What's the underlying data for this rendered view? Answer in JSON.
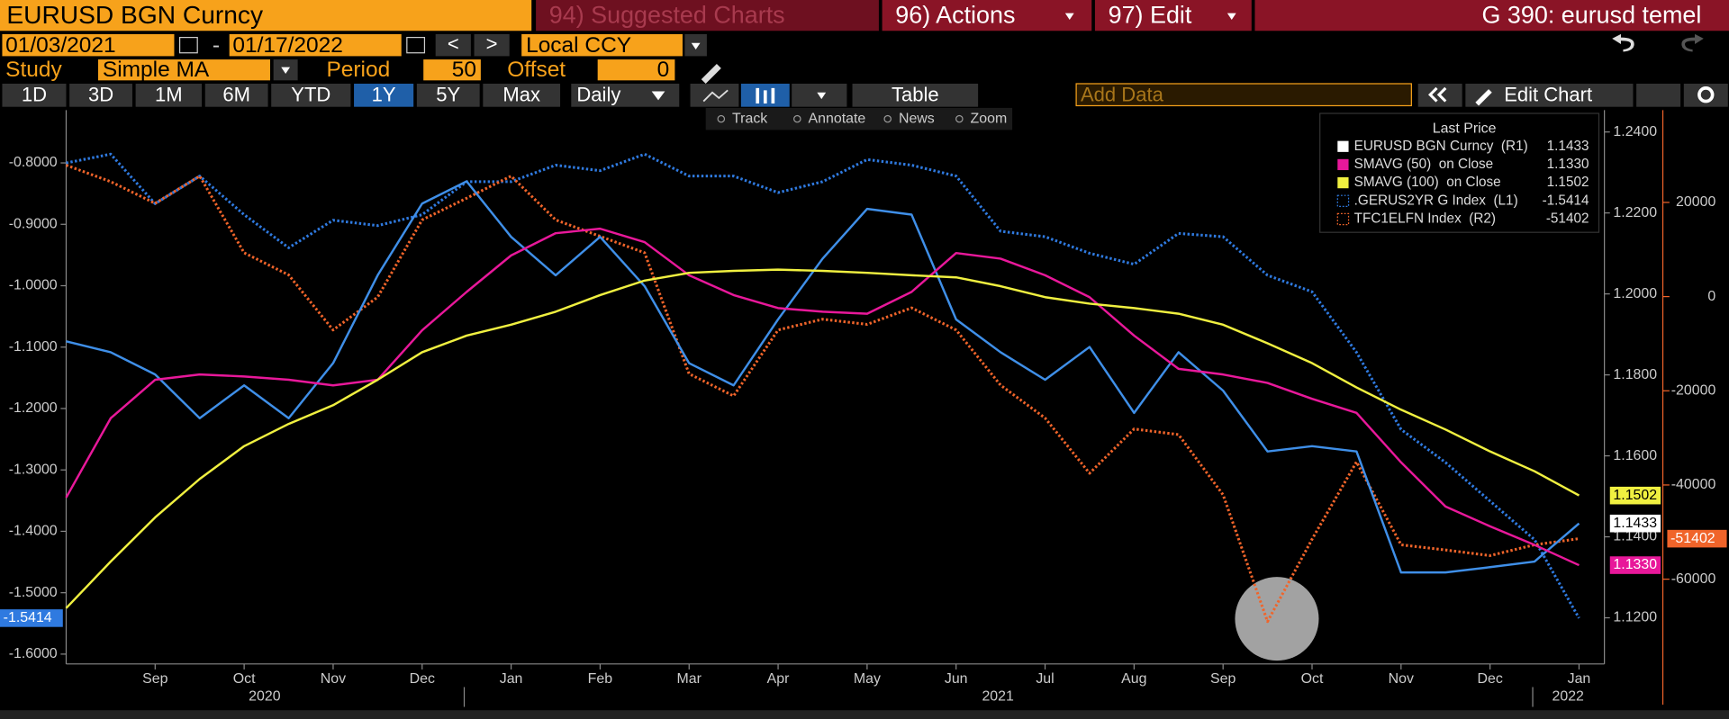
{
  "ui": {
    "header": [
      "EURUSD BGN Curncy",
      "94) Suggested Charts",
      "96) Actions",
      "97) Edit",
      "G 390: eurusd temel"
    ],
    "dates": {
      "start": "01/03/2021",
      "sep": "-",
      "end": "01/17/2022"
    },
    "nav": [
      "<",
      ">"
    ],
    "currency": "Local CCY",
    "study": {
      "label": "Study",
      "type": "Simple MA",
      "period_label": "Period",
      "period": 50,
      "offset_label": "Offset",
      "offset": 0
    },
    "ranges": [
      "1D",
      "3D",
      "1M",
      "6M",
      "YTD",
      "1Y",
      "5Y",
      "Max"
    ],
    "active_range": "1Y",
    "frequency": "Daily",
    "table": "Table",
    "add_data": "Add Data",
    "edit_chart": "Edit Chart",
    "tools": [
      "Track",
      "Annotate",
      "News",
      "Zoom"
    ]
  },
  "chart_data": {
    "type": "line",
    "categories": [
      null,
      null,
      "Sep",
      null,
      "Oct",
      null,
      "Nov",
      null,
      "Dec",
      null,
      "Jan",
      null,
      "Feb",
      null,
      "Mar",
      null,
      "Apr",
      null,
      "May",
      null,
      "Jun",
      null,
      "Jul",
      null,
      "Aug",
      null,
      "Sep",
      null,
      "Oct",
      null,
      "Nov",
      null,
      "Dec",
      null,
      "Jan"
    ],
    "year_labels": [
      "2020",
      "2021",
      "2022"
    ],
    "legend_title": "Last Price",
    "ylim": [
      -1.616,
      -0.714
    ],
    "yticks": [
      {
        "value": -0.8,
        "label": "-0.8000"
      },
      {
        "value": -0.9,
        "label": "-0.9000"
      },
      {
        "value": -1.0,
        "label": "-1.0000"
      },
      {
        "value": -1.1,
        "label": "-1.1000"
      },
      {
        "value": -1.2,
        "label": "-1.2000"
      },
      {
        "value": -1.3,
        "label": "-1.3000"
      },
      {
        "value": -1.4,
        "label": "-1.4000"
      },
      {
        "value": -1.5,
        "label": "-1.5000"
      },
      {
        "value": -1.6,
        "label": "-1.6000"
      }
    ],
    "y2lim": [
      1.1086,
      1.2454
    ],
    "y2ticks": [
      {
        "value": 1.24,
        "label": "1.2400"
      },
      {
        "value": 1.22,
        "label": "1.2200"
      },
      {
        "value": 1.2,
        "label": "1.2000"
      },
      {
        "value": 1.18,
        "label": "1.1800"
      },
      {
        "value": 1.16,
        "label": "1.1600"
      },
      {
        "value": 1.14,
        "label": "1.1400"
      },
      {
        "value": 1.12,
        "label": "1.1200"
      }
    ],
    "y3lim": [
      -78000,
      39600
    ],
    "y3ticks": [
      20000,
      0,
      -20000,
      -40000,
      -60000
    ],
    "grid": false,
    "legend": "top-right",
    "series": [
      {
        "name": "EURUSD BGN Curncy  (R1)",
        "color": "#ffffff",
        "line_color": "#3f8fe8",
        "axis": "y2",
        "style": "solid",
        "last_label": "1.1433",
        "values": [
          1.1883,
          1.1856,
          1.1801,
          1.1693,
          1.1774,
          1.1693,
          1.1829,
          1.2046,
          1.2223,
          1.2278,
          1.2141,
          1.2046,
          1.2141,
          1.2019,
          1.1829,
          1.1774,
          1.1937,
          1.2087,
          1.221,
          1.2196,
          1.1937,
          1.1856,
          1.1788,
          1.1869,
          1.1706,
          1.1856,
          1.1761,
          1.1611,
          1.1624,
          1.1611,
          1.1312,
          1.1312,
          1.1325,
          1.1339,
          1.1433
        ]
      },
      {
        "name": "SMAVG (50)  on Close",
        "color": "#e8189a",
        "axis": "y2",
        "style": "solid",
        "last_label": "1.1330",
        "values": [
          1.1497,
          1.1693,
          1.1788,
          1.1801,
          1.1796,
          1.1788,
          1.1774,
          1.1788,
          1.191,
          1.2005,
          1.2095,
          1.215,
          1.2161,
          1.2128,
          1.2046,
          1.1997,
          1.1965,
          1.1956,
          1.1951,
          1.2005,
          1.2101,
          1.2087,
          1.2046,
          1.1992,
          1.1897,
          1.1815,
          1.1801,
          1.178,
          1.1741,
          1.1706,
          1.1584,
          1.1475,
          1.1426,
          1.138,
          1.133
        ]
      },
      {
        "name": "SMAVG (100)  on Close",
        "color": "#f0f040",
        "axis": "y2",
        "style": "solid",
        "last_label": "1.1502",
        "values": [
          1.1224,
          1.1339,
          1.1448,
          1.1543,
          1.1624,
          1.1679,
          1.1725,
          1.1788,
          1.1856,
          1.1897,
          1.1924,
          1.1956,
          1.1997,
          1.2033,
          1.2052,
          1.2057,
          1.206,
          1.2057,
          1.2052,
          1.2046,
          1.2041,
          1.2019,
          1.1992,
          1.1976,
          1.1965,
          1.1951,
          1.1924,
          1.1878,
          1.1829,
          1.1769,
          1.1714,
          1.1665,
          1.1611,
          1.1562,
          1.1502
        ]
      },
      {
        "name": ".GERUS2YR G Index  (L1)",
        "color": "#2f7ae0",
        "axis": "y",
        "style": "dotted",
        "last_label": "-1.5414",
        "values": [
          -0.8,
          -0.7857,
          -0.8664,
          -0.8215,
          -0.8843,
          -0.9381,
          -0.8933,
          -0.9022,
          -0.8843,
          -0.8305,
          -0.8305,
          -0.8036,
          -0.8126,
          -0.7857,
          -0.8215,
          -0.8215,
          -0.8484,
          -0.8305,
          -0.7946,
          -0.8036,
          -0.8215,
          -0.9112,
          -0.9202,
          -0.9471,
          -0.965,
          -0.9148,
          -0.9202,
          -0.983,
          -1.0099,
          -1.1085,
          -1.2341,
          -1.2879,
          -1.3507,
          -1.4135,
          -1.5414
        ]
      },
      {
        "name": "TFC1ELFN Index  (R2)",
        "color": "#f0642a",
        "axis": "y3",
        "style": "dotted",
        "last_label": "-51402",
        "values": [
          27900,
          24400,
          19800,
          25600,
          9300,
          4600,
          -7100,
          -100,
          16300,
          20900,
          25600,
          16300,
          12800,
          9300,
          -16400,
          -21100,
          -7100,
          -4800,
          -5900,
          -2400,
          -7100,
          -18800,
          -25800,
          -37500,
          -28100,
          -29300,
          -42100,
          -69000,
          -51500,
          -35100,
          -52700,
          -53800,
          -55000,
          -52700,
          -51402
        ]
      }
    ]
  }
}
